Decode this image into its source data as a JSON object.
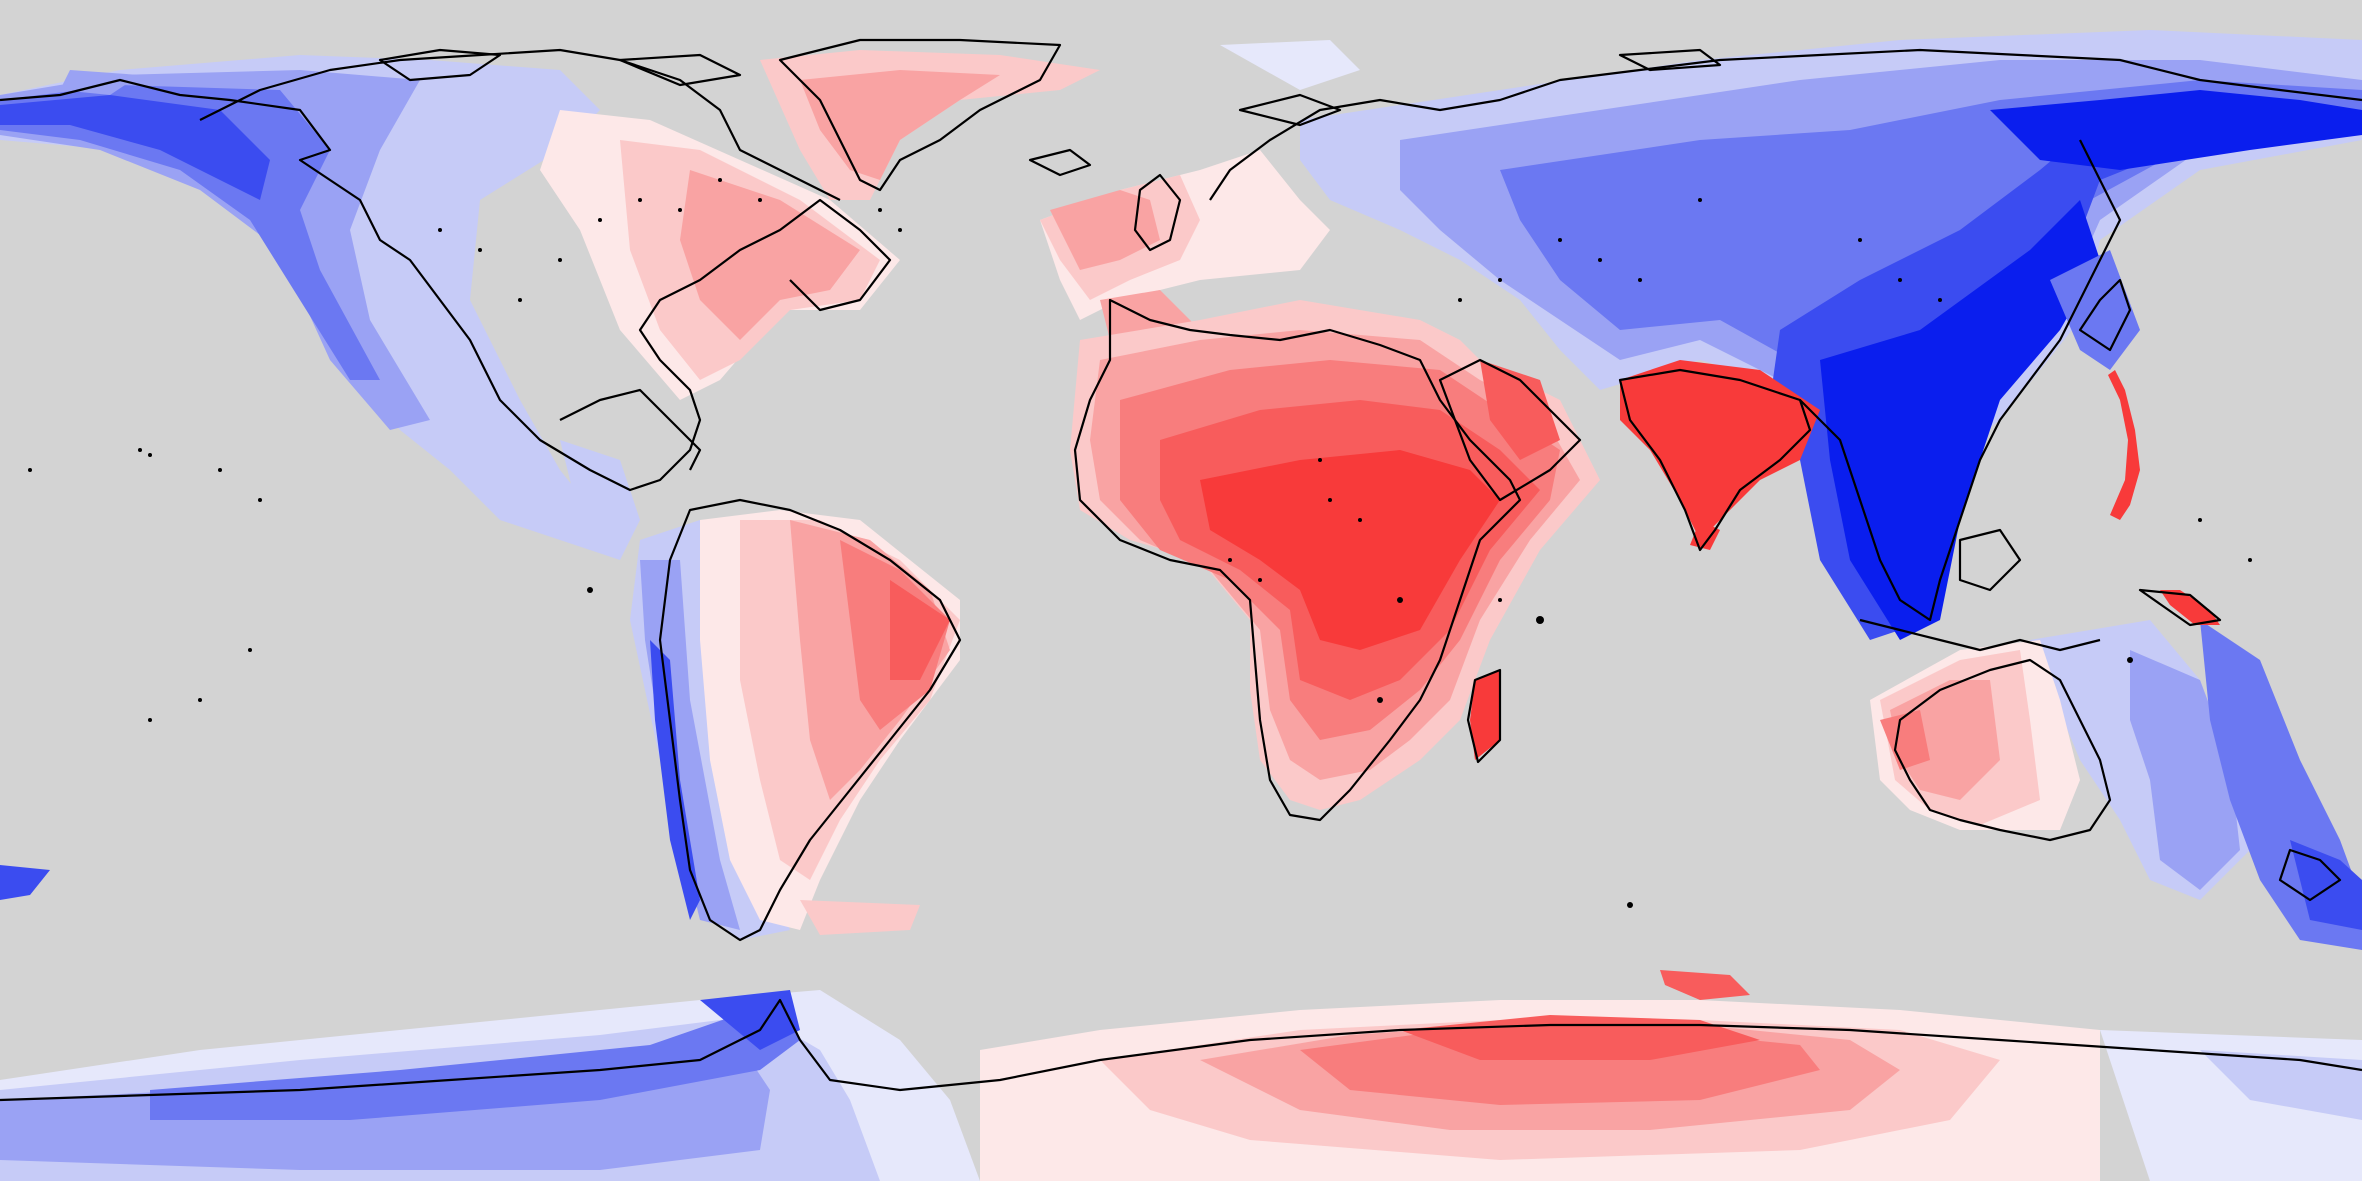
{
  "map": {
    "projection": "equirectangular",
    "extent": {
      "lon": [
        -180,
        180
      ],
      "lat": [
        -90,
        90
      ]
    },
    "background_color": "#d3d3d3",
    "coastline_color": "#000000",
    "diverging_palette": {
      "blue": [
        "#0a1eee",
        "#3b4cf0",
        "#6b78f2",
        "#9aa2f4",
        "#c6cbf7",
        "#e6e8fb"
      ],
      "red": [
        "#f83a3a",
        "#f85c5c",
        "#f87d7d",
        "#f9a3a3",
        "#fbc9c9",
        "#fde8e8"
      ]
    },
    "legend": "none",
    "title": ""
  }
}
